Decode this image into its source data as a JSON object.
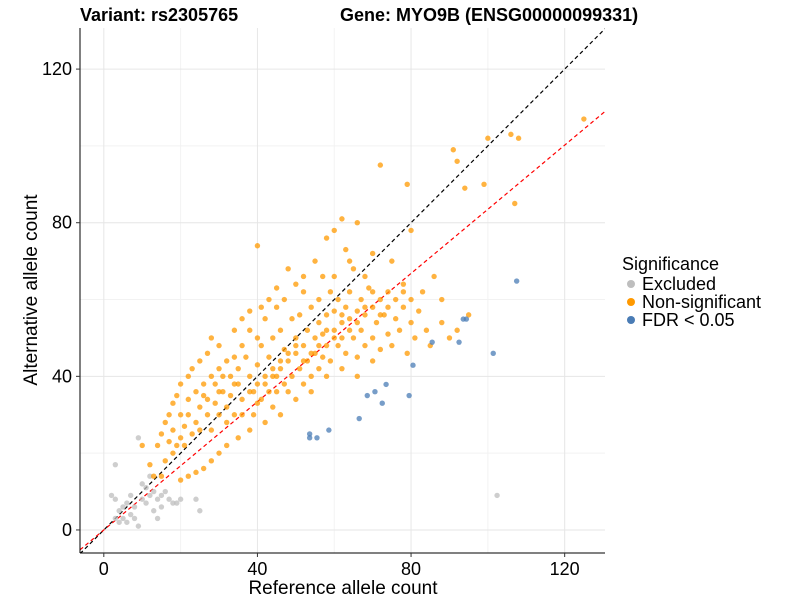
{
  "chart_data": {
    "type": "scatter",
    "title_left": "Variant: rs2305765",
    "title_right": "Gene: MYO9B (ENSG00000099331)",
    "xlabel": "Reference allele count",
    "ylabel": "Alternative allele count",
    "xlim": [
      -6.2,
      130.5
    ],
    "ylim": [
      -6,
      130.7
    ],
    "xticks": [
      0,
      40,
      80,
      120
    ],
    "yticks": [
      0,
      40,
      80,
      120
    ],
    "minor_grid": [
      20,
      60,
      100
    ],
    "grid": true,
    "legend": {
      "title": "Significance",
      "placement": "right"
    },
    "reference_lines": [
      {
        "name": "identity",
        "slope": 1,
        "intercept": 0,
        "color": "#000000",
        "dash": true
      },
      {
        "name": "fit",
        "slope": 0.835,
        "intercept": 0,
        "color": "#ff0000",
        "dash": true
      }
    ],
    "series": [
      {
        "name": "Excluded",
        "color": "#bebebe",
        "points": [
          [
            3,
            17
          ],
          [
            9,
            24
          ],
          [
            2,
            9
          ],
          [
            3,
            8
          ],
          [
            4,
            5
          ],
          [
            5,
            6
          ],
          [
            6,
            7
          ],
          [
            5,
            3
          ],
          [
            6,
            2
          ],
          [
            7,
            4
          ],
          [
            8,
            6
          ],
          [
            8,
            3
          ],
          [
            9,
            1
          ],
          [
            10,
            8
          ],
          [
            11,
            7
          ],
          [
            12,
            9
          ],
          [
            13,
            10
          ],
          [
            11,
            11
          ],
          [
            14,
            8
          ],
          [
            15,
            6
          ],
          [
            15,
            9
          ],
          [
            16,
            10
          ],
          [
            17,
            8
          ],
          [
            18,
            7
          ],
          [
            19,
            7
          ],
          [
            20,
            8
          ],
          [
            24,
            8
          ],
          [
            25,
            5
          ],
          [
            13,
            5
          ],
          [
            14,
            3
          ],
          [
            10,
            12
          ],
          [
            12,
            14
          ],
          [
            4,
            2
          ],
          [
            3,
            3
          ],
          [
            7,
            9
          ],
          [
            102.4,
            9
          ]
        ]
      },
      {
        "name": "Non-significant",
        "color": "#ff9900",
        "points": [
          [
            125,
            107
          ],
          [
            106,
            103
          ],
          [
            108,
            102
          ],
          [
            100,
            102
          ],
          [
            91,
            99
          ],
          [
            92,
            96
          ],
          [
            72,
            95
          ],
          [
            79,
            90
          ],
          [
            99,
            90
          ],
          [
            94,
            89
          ],
          [
            107,
            85
          ],
          [
            40,
            74
          ],
          [
            62,
            81
          ],
          [
            66,
            80
          ],
          [
            60,
            78
          ],
          [
            80,
            78
          ],
          [
            58,
            76
          ],
          [
            86,
            66
          ],
          [
            88,
            60
          ],
          [
            83,
            62
          ],
          [
            78,
            64
          ],
          [
            75,
            70
          ],
          [
            70,
            72
          ],
          [
            68,
            66
          ],
          [
            65,
            68
          ],
          [
            63,
            73
          ],
          [
            55,
            70
          ],
          [
            52,
            66
          ],
          [
            50,
            64
          ],
          [
            48,
            68
          ],
          [
            45,
            63
          ],
          [
            43,
            60
          ],
          [
            41,
            58
          ],
          [
            38,
            57
          ],
          [
            36,
            55
          ],
          [
            34,
            52
          ],
          [
            30,
            48
          ],
          [
            28,
            50
          ],
          [
            27,
            46
          ],
          [
            25,
            44
          ],
          [
            23,
            42
          ],
          [
            22,
            40
          ],
          [
            20,
            38
          ],
          [
            19,
            35
          ],
          [
            18,
            33
          ],
          [
            17,
            30
          ],
          [
            16,
            28
          ],
          [
            15,
            25
          ],
          [
            14,
            22
          ],
          [
            12,
            17
          ],
          [
            10,
            22
          ],
          [
            13,
            14
          ],
          [
            15,
            14
          ],
          [
            16,
            18
          ],
          [
            18,
            20
          ],
          [
            20,
            24
          ],
          [
            21,
            27
          ],
          [
            22,
            30
          ],
          [
            24,
            28
          ],
          [
            25,
            32
          ],
          [
            26,
            35
          ],
          [
            27,
            30
          ],
          [
            28,
            26
          ],
          [
            29,
            33
          ],
          [
            30,
            36
          ],
          [
            31,
            40
          ],
          [
            32,
            28
          ],
          [
            33,
            35
          ],
          [
            34,
            38
          ],
          [
            35,
            42
          ],
          [
            36,
            30
          ],
          [
            37,
            45
          ],
          [
            38,
            40
          ],
          [
            39,
            36
          ],
          [
            40,
            43
          ],
          [
            40,
            33
          ],
          [
            41,
            48
          ],
          [
            42,
            38
          ],
          [
            43,
            45
          ],
          [
            44,
            40
          ],
          [
            44,
            50
          ],
          [
            45,
            36
          ],
          [
            46,
            42
          ],
          [
            46,
            52
          ],
          [
            47,
            38
          ],
          [
            47,
            47
          ],
          [
            48,
            44
          ],
          [
            49,
            55
          ],
          [
            49,
            40
          ],
          [
            50,
            46
          ],
          [
            50,
            50
          ],
          [
            51,
            42
          ],
          [
            51,
            56
          ],
          [
            52,
            48
          ],
          [
            53,
            44
          ],
          [
            53,
            52
          ],
          [
            54,
            58
          ],
          [
            54,
            40
          ],
          [
            55,
            50
          ],
          [
            55,
            46
          ],
          [
            56,
            54
          ],
          [
            56,
            60
          ],
          [
            57,
            45
          ],
          [
            57,
            51
          ],
          [
            58,
            56
          ],
          [
            58,
            48
          ],
          [
            59,
            62
          ],
          [
            59,
            44
          ],
          [
            60,
            52
          ],
          [
            60,
            57
          ],
          [
            61,
            48
          ],
          [
            61,
            60
          ],
          [
            62,
            54
          ],
          [
            62,
            50
          ],
          [
            63,
            58
          ],
          [
            63,
            46
          ],
          [
            64,
            55
          ],
          [
            64,
            62
          ],
          [
            65,
            50
          ],
          [
            66,
            57
          ],
          [
            66,
            45
          ],
          [
            67,
            60
          ],
          [
            67,
            52
          ],
          [
            68,
            48
          ],
          [
            68,
            56
          ],
          [
            69,
            63
          ],
          [
            70,
            50
          ],
          [
            70,
            58
          ],
          [
            71,
            54
          ],
          [
            72,
            47
          ],
          [
            72,
            60
          ],
          [
            73,
            56
          ],
          [
            74,
            51
          ],
          [
            74,
            62
          ],
          [
            75,
            48
          ],
          [
            76,
            55
          ],
          [
            77,
            52
          ],
          [
            78,
            58
          ],
          [
            79,
            46
          ],
          [
            80,
            54
          ],
          [
            81,
            50
          ],
          [
            82,
            57
          ],
          [
            84,
            52
          ],
          [
            85,
            48
          ],
          [
            88,
            54
          ],
          [
            90,
            50
          ],
          [
            92,
            52
          ],
          [
            95,
            56
          ],
          [
            62,
            42
          ],
          [
            58,
            40
          ],
          [
            54,
            36
          ],
          [
            50,
            34
          ],
          [
            46,
            30
          ],
          [
            42,
            28
          ],
          [
            38,
            26
          ],
          [
            35,
            24
          ],
          [
            32,
            22
          ],
          [
            30,
            20
          ],
          [
            28,
            18
          ],
          [
            26,
            16
          ],
          [
            24,
            15
          ],
          [
            22,
            14
          ],
          [
            20,
            13
          ],
          [
            44,
            32
          ],
          [
            48,
            36
          ],
          [
            52,
            38
          ],
          [
            56,
            42
          ],
          [
            66,
            40
          ],
          [
            70,
            44
          ],
          [
            36,
            48
          ],
          [
            38,
            52
          ],
          [
            40,
            50
          ],
          [
            42,
            55
          ],
          [
            34,
            45
          ],
          [
            32,
            44
          ],
          [
            30,
            42
          ],
          [
            28,
            40
          ],
          [
            26,
            38
          ],
          [
            24,
            36
          ],
          [
            22,
            34
          ],
          [
            20,
            30
          ],
          [
            18,
            26
          ],
          [
            45,
            58
          ],
          [
            47,
            60
          ],
          [
            52,
            62
          ],
          [
            57,
            66
          ],
          [
            60,
            66
          ],
          [
            64,
            70
          ],
          [
            30,
            30
          ],
          [
            32,
            32
          ],
          [
            34,
            30
          ],
          [
            36,
            34
          ],
          [
            38,
            36
          ],
          [
            40,
            38
          ],
          [
            42,
            40
          ],
          [
            44,
            42
          ],
          [
            46,
            44
          ],
          [
            48,
            46
          ],
          [
            50,
            48
          ],
          [
            52,
            44
          ],
          [
            54,
            46
          ],
          [
            56,
            48
          ],
          [
            58,
            52
          ],
          [
            60,
            50
          ],
          [
            62,
            56
          ],
          [
            64,
            52
          ],
          [
            66,
            54
          ],
          [
            68,
            58
          ],
          [
            70,
            62
          ],
          [
            72,
            56
          ],
          [
            74,
            58
          ],
          [
            76,
            60
          ],
          [
            78,
            62
          ],
          [
            80,
            60
          ],
          [
            39,
            30
          ],
          [
            41,
            34
          ],
          [
            43,
            36
          ],
          [
            45,
            40
          ],
          [
            35,
            38
          ],
          [
            33,
            40
          ],
          [
            31,
            36
          ],
          [
            29,
            38
          ],
          [
            27,
            34
          ],
          [
            25,
            26
          ],
          [
            23,
            25
          ],
          [
            21,
            22
          ],
          [
            19,
            22
          ],
          [
            17,
            23
          ]
        ]
      },
      {
        "name": "FDR < 0.05",
        "color": "#4a7cb5",
        "points": [
          [
            107.5,
            64.8
          ],
          [
            93.6,
            54.9
          ],
          [
            94.4,
            54.9
          ],
          [
            85.5,
            48.9
          ],
          [
            92.5,
            48.9
          ],
          [
            101.4,
            46
          ],
          [
            80.5,
            42.9
          ],
          [
            73.5,
            37.9
          ],
          [
            68.6,
            35
          ],
          [
            70.6,
            36
          ],
          [
            72.5,
            33
          ],
          [
            79.5,
            35
          ],
          [
            66.5,
            29
          ],
          [
            58.6,
            26
          ],
          [
            53.6,
            25
          ],
          [
            53.6,
            24
          ],
          [
            55.5,
            24
          ]
        ]
      }
    ]
  }
}
